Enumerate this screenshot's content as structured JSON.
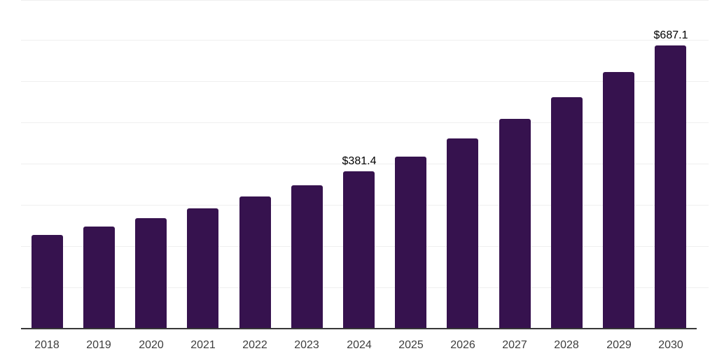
{
  "chart_data": {
    "type": "bar",
    "categories": [
      "2018",
      "2019",
      "2020",
      "2021",
      "2022",
      "2023",
      "2024",
      "2025",
      "2026",
      "2027",
      "2028",
      "2029",
      "2030"
    ],
    "values": [
      226.4,
      247.4,
      268.3,
      291.7,
      319.6,
      348.0,
      381.4,
      416.8,
      461.1,
      507.9,
      561.8,
      622.2,
      687.1
    ],
    "labeled_points": [
      {
        "index": 6,
        "text": "$381.4"
      },
      {
        "index": 12,
        "text": "$687.1"
      }
    ],
    "title": "",
    "xlabel": "",
    "ylabel": "",
    "ylim": [
      0,
      800
    ],
    "gridline_step": 100,
    "grid": true,
    "legend": false,
    "colors": {
      "bar": "#36124E",
      "gridline": "#EFEFEF",
      "axis_line": "#383838",
      "value_label": "#000000",
      "tick_label": "#3D3D3D",
      "background": "#FFFFFF"
    }
  }
}
